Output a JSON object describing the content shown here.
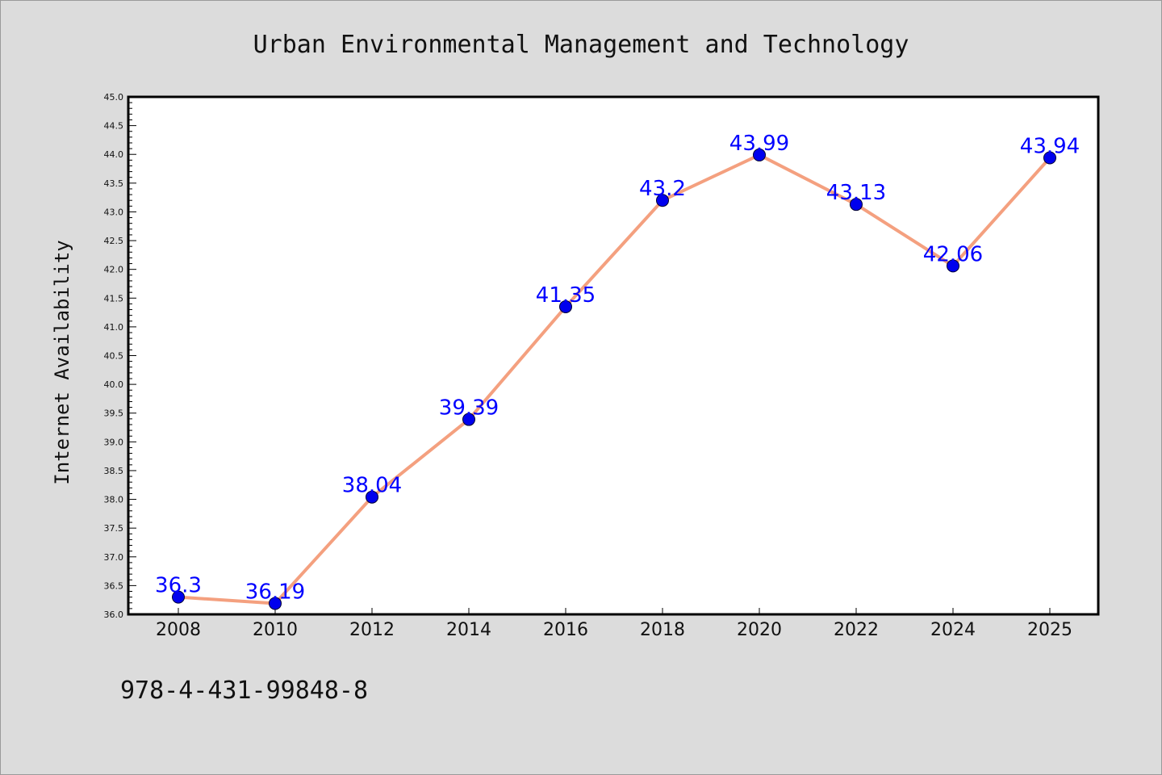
{
  "chart_data": {
    "type": "line",
    "title": "Urban Environmental Management and Technology",
    "ylabel": "Internet Availability",
    "xlabel": "",
    "categories": [
      "2008",
      "2010",
      "2012",
      "2014",
      "2016",
      "2018",
      "2020",
      "2022",
      "2024",
      "2025"
    ],
    "series": [
      {
        "values": [
          36.3,
          36.19,
          38.04,
          39.39,
          41.35,
          43.2,
          43.99,
          43.13,
          42.06,
          43.94
        ],
        "labels": [
          "36.3",
          "36.19",
          "38.04",
          "39.39",
          "41.35",
          "43.2",
          "43.99",
          "43.13",
          "42.06",
          "43.94"
        ]
      }
    ],
    "ylim": [
      36.0,
      45.0
    ],
    "yticks": [
      "36.0",
      "36.5",
      "37.0",
      "37.5",
      "38.0",
      "38.5",
      "39.0",
      "39.5",
      "40.0",
      "40.5",
      "41.0",
      "41.5",
      "42.0",
      "42.5",
      "43.0",
      "43.5",
      "44.0",
      "44.5",
      "45.0"
    ],
    "grid": false,
    "colors": {
      "line": "#f4a07f",
      "marker": "#0000ee",
      "label": "#0000ff",
      "background": "#dcdcdc",
      "plot_bg": "#ffffff"
    }
  },
  "footer": {
    "isbn": "978-4-431-99848-8"
  }
}
